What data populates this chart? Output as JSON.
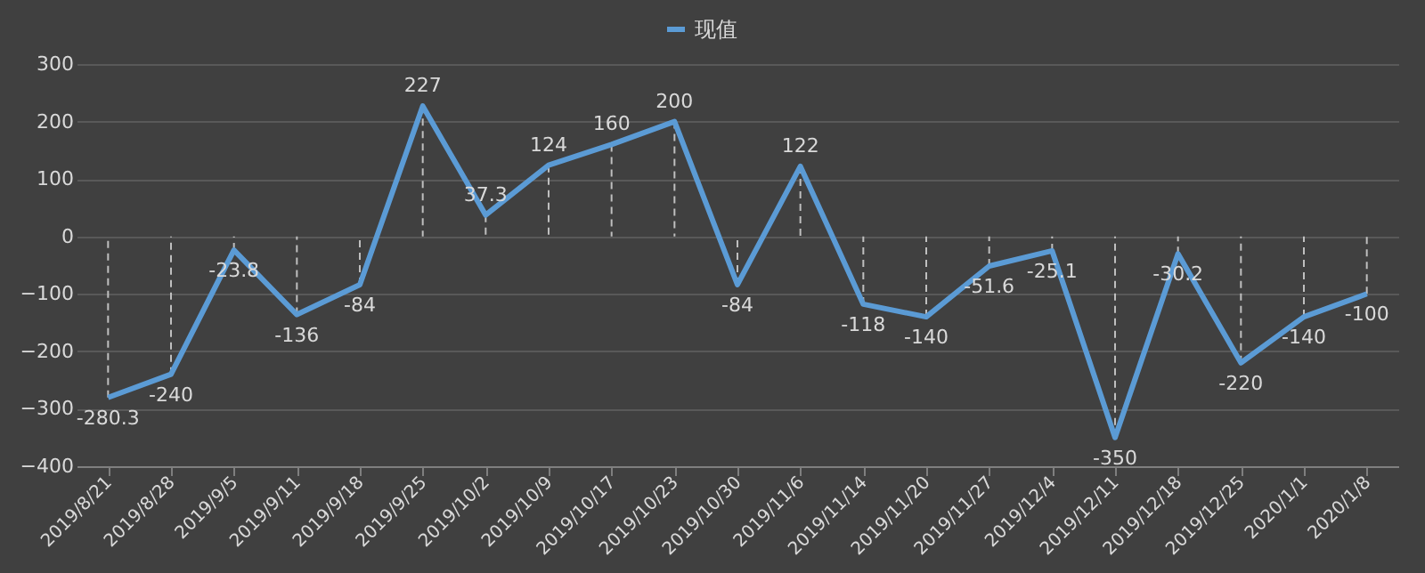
{
  "chart_data": {
    "type": "line",
    "categories": [
      "2019/8/21",
      "2019/8/28",
      "2019/9/5",
      "2019/9/11",
      "2019/9/18",
      "2019/9/25",
      "2019/10/2",
      "2019/10/9",
      "2019/10/17",
      "2019/10/23",
      "2019/10/30",
      "2019/11/6",
      "2019/11/14",
      "2019/11/20",
      "2019/11/27",
      "2019/12/4",
      "2019/12/11",
      "2019/12/18",
      "2019/12/25",
      "2020/1/1",
      "2020/1/8"
    ],
    "series": [
      {
        "name": "现值",
        "color": "#5b9bd5",
        "values": [
          -280.3,
          -240,
          -23.8,
          -136,
          -84,
          227,
          37.3,
          124,
          160,
          200,
          -84,
          122,
          -118,
          -140,
          -51.6,
          -25.1,
          -350,
          -30.2,
          -220,
          -140,
          -100
        ]
      }
    ],
    "ylim": [
      -400,
      300
    ],
    "yticks": [
      -400,
      -300,
      -200,
      -100,
      0,
      100,
      200,
      300
    ],
    "grid": "y",
    "legend": "top",
    "data_labels": true,
    "marker": "none",
    "line_style": "solid"
  }
}
